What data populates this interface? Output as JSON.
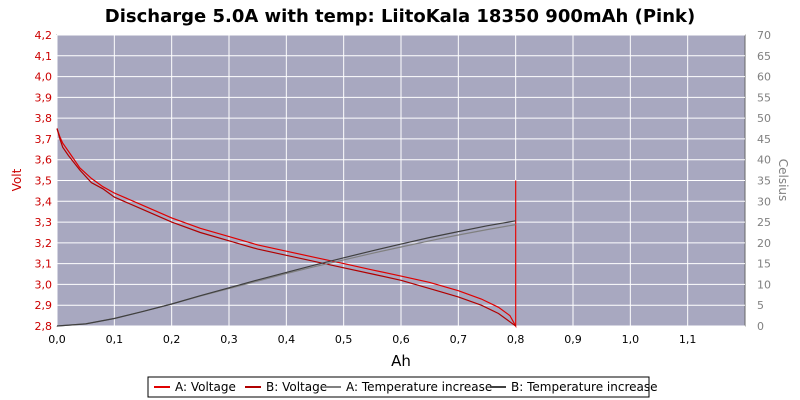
{
  "chart_data": {
    "type": "line",
    "title": "Discharge 5.0A with temp: LiitoKala  18350 900mAh (Pink)",
    "xlabel": "Ah",
    "ylabel": "Volt",
    "y2label": "Celsius",
    "xlim": [
      0,
      1.2
    ],
    "ylim": [
      2.8,
      4.2
    ],
    "y2lim": [
      0,
      70
    ],
    "x_ticks": [
      "0,0",
      "0,1",
      "0,2",
      "0,3",
      "0,4",
      "0,5",
      "0,6",
      "0,7",
      "0,8",
      "0,9",
      "1,0",
      "1,1"
    ],
    "y_ticks": [
      "2,8",
      "2,9",
      "3,0",
      "3,1",
      "3,2",
      "3,3",
      "3,4",
      "3,5",
      "3,6",
      "3,7",
      "3,8",
      "3,9",
      "4,0",
      "4,1",
      "4,2"
    ],
    "y2_ticks": [
      "0",
      "5",
      "10",
      "15",
      "20",
      "25",
      "30",
      "35",
      "40",
      "45",
      "50",
      "55",
      "60",
      "65",
      "70"
    ],
    "grid": true,
    "legend_position": "bottom",
    "colors": {
      "plot_bg": "#a8a8c0",
      "grid": "#ffffff",
      "voltage_a": "#e00000",
      "voltage_b": "#b00000",
      "temp_a": "#808080",
      "temp_b": "#404040"
    },
    "series": [
      {
        "name": "A: Voltage",
        "axis": "left",
        "x": [
          0,
          0.005,
          0.01,
          0.02,
          0.04,
          0.06,
          0.08,
          0.1,
          0.15,
          0.2,
          0.25,
          0.3,
          0.35,
          0.4,
          0.45,
          0.5,
          0.55,
          0.6,
          0.65,
          0.7,
          0.74,
          0.77,
          0.79,
          0.8,
          0.8,
          0.8
        ],
        "y": [
          3.75,
          3.71,
          3.68,
          3.64,
          3.56,
          3.51,
          3.47,
          3.44,
          3.38,
          3.32,
          3.27,
          3.23,
          3.19,
          3.16,
          3.13,
          3.1,
          3.07,
          3.04,
          3.01,
          2.97,
          2.93,
          2.89,
          2.85,
          2.8,
          3.22,
          3.5
        ]
      },
      {
        "name": "B: Voltage",
        "axis": "left",
        "x": [
          0,
          0.005,
          0.01,
          0.02,
          0.04,
          0.06,
          0.08,
          0.1,
          0.15,
          0.2,
          0.25,
          0.3,
          0.35,
          0.4,
          0.45,
          0.5,
          0.55,
          0.6,
          0.65,
          0.7,
          0.74,
          0.77,
          0.79,
          0.8
        ],
        "y": [
          3.75,
          3.7,
          3.66,
          3.62,
          3.55,
          3.49,
          3.46,
          3.42,
          3.36,
          3.3,
          3.25,
          3.21,
          3.17,
          3.14,
          3.11,
          3.08,
          3.05,
          3.02,
          2.98,
          2.94,
          2.9,
          2.86,
          2.82,
          2.8
        ]
      },
      {
        "name": "A: Temperature increase",
        "axis": "right",
        "x": [
          0,
          0.05,
          0.1,
          0.15,
          0.2,
          0.25,
          0.3,
          0.35,
          0.4,
          0.45,
          0.5,
          0.55,
          0.6,
          0.65,
          0.7,
          0.75,
          0.8
        ],
        "y": [
          0,
          0.5,
          1.8,
          3.5,
          5.3,
          7.2,
          9.0,
          10.8,
          12.6,
          14.3,
          15.9,
          17.5,
          19.0,
          20.5,
          21.9,
          23.2,
          24.4
        ]
      },
      {
        "name": "B: Temperature increase",
        "axis": "right",
        "x": [
          0,
          0.05,
          0.1,
          0.15,
          0.2,
          0.25,
          0.3,
          0.35,
          0.4,
          0.45,
          0.5,
          0.55,
          0.6,
          0.65,
          0.7,
          0.75,
          0.8
        ],
        "y": [
          0,
          0.5,
          1.8,
          3.5,
          5.3,
          7.3,
          9.2,
          11.1,
          12.9,
          14.7,
          16.4,
          18.1,
          19.7,
          21.3,
          22.7,
          24.1,
          25.3
        ]
      }
    ]
  }
}
